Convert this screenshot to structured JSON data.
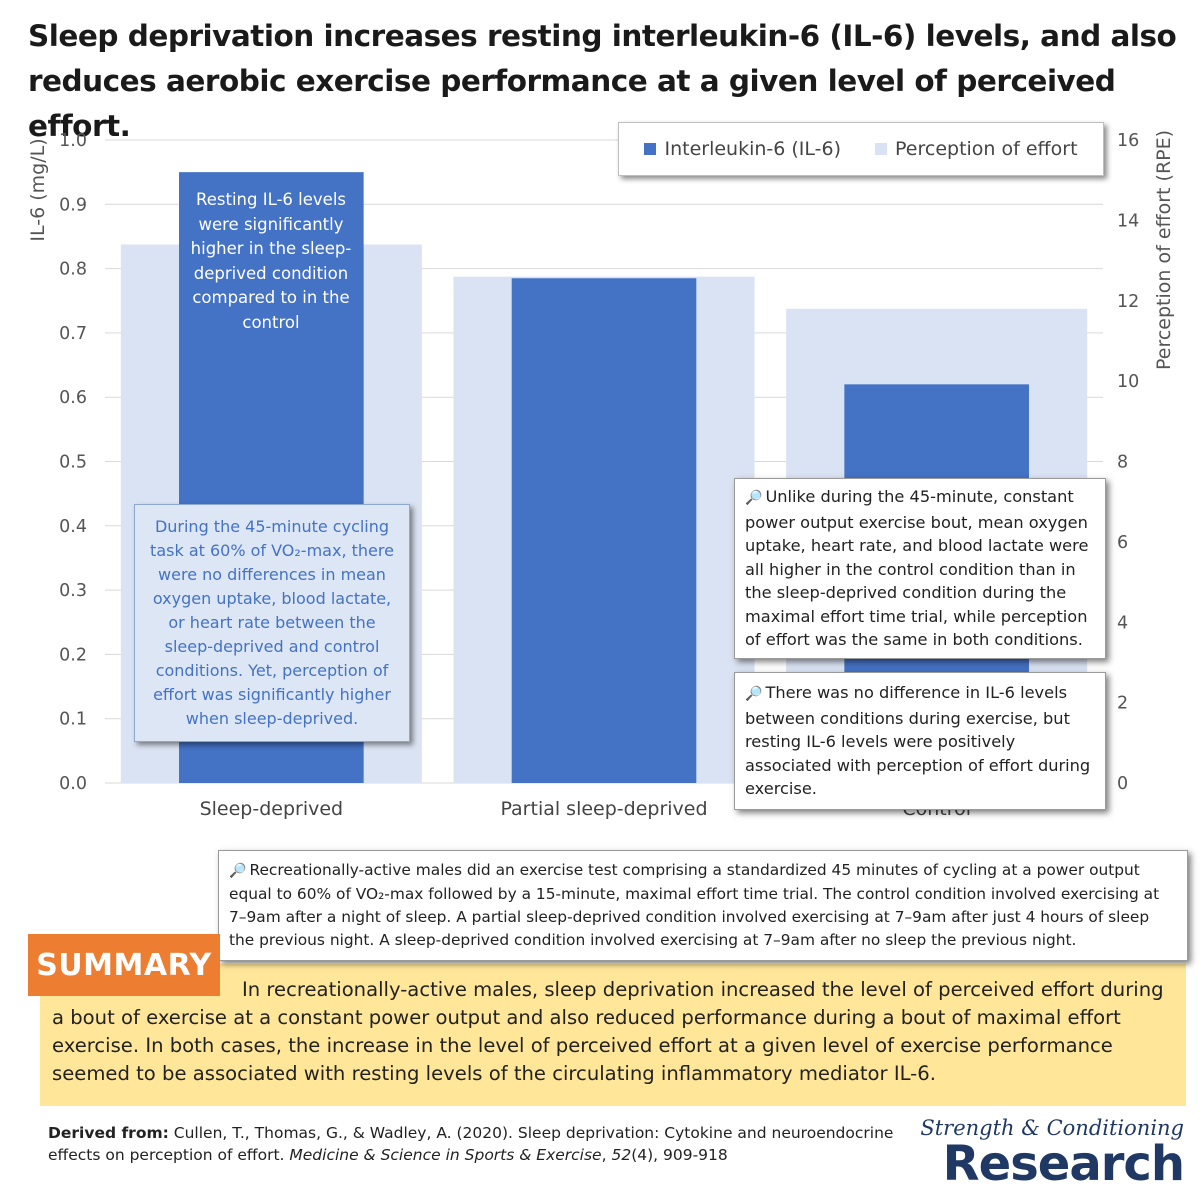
{
  "title": "Sleep deprivation increases resting interleukin-6 (IL-6) levels, and also reduces aerobic exercise performance at a given level of perceived effort.",
  "colors": {
    "il6": "#4472c4",
    "effort": "#dae3f3",
    "summary_bg": "#ffe699",
    "summary_tag": "#ed7d31",
    "logo": "#1f3864"
  },
  "chart_data": {
    "type": "bar",
    "categories": [
      "Sleep-deprived",
      "Partial sleep-deprived",
      "Control"
    ],
    "series": [
      {
        "name": "Interleukin-6 (IL-6)",
        "axis": "left",
        "values": [
          0.95,
          0.785,
          0.62
        ]
      },
      {
        "name": "Perception of effort",
        "axis": "right",
        "values": [
          13.4,
          12.6,
          11.8
        ]
      }
    ],
    "ylabel": "IL-6 (mg/L)",
    "ylim": [
      0,
      1.0
    ],
    "yticks": [
      "0.0",
      "0.1",
      "0.2",
      "0.3",
      "0.4",
      "0.5",
      "0.6",
      "0.7",
      "0.8",
      "0.9",
      "1.0"
    ],
    "y2label": "Perception of effort (RPE)",
    "y2lim": [
      0,
      16
    ],
    "y2ticks": [
      "0",
      "2",
      "4",
      "6",
      "8",
      "10",
      "12",
      "14",
      "16"
    ],
    "grid": true,
    "legend": "top-right"
  },
  "annotations": {
    "bar_note": "Resting IL-6 levels were significantly higher in the sleep-deprived condition compared to in the control",
    "callout_left": "During the 45-minute cycling task at 60% of VO₂-max, there were no differences in mean oxygen uptake, blood lactate, or heart rate between the sleep-deprived and control conditions. Yet, perception of effort was significantly higher when sleep-deprived.",
    "note_right_1": "Unlike during the 45-minute, constant power output exercise bout, mean oxygen uptake, heart rate, and blood lactate were all higher in the control condition than in the sleep-deprived condition during the maximal effort time trial, while perception of effort was the same in both conditions.",
    "note_right_2": "There was no difference in IL-6 levels between conditions during exercise, but resting IL-6 levels were positively associated with perception of effort during exercise.",
    "note_method": "Recreationally-active males did an exercise test comprising a standardized 45 minutes of cycling at a power output equal to 60% of VO₂-max followed by a 15-minute, maximal effort time trial. The control condition involved exercising at 7–9am after a night of sleep. A partial sleep-deprived condition involved exercising at 7–9am after just 4 hours of sleep the previous night. A sleep-deprived condition involved exercising at 7–9am after no sleep the previous night."
  },
  "summary": {
    "label": "SUMMARY",
    "text": "In recreationally-active males, sleep deprivation increased the level of perceived effort during a bout of exercise at a constant power output and also reduced performance during a bout of maximal effort exercise. In both cases, the increase in the level of perceived effort at a given level of exercise performance seemed to be associated with resting levels of the circulating inflammatory mediator IL-6."
  },
  "citation": {
    "label": "Derived from:",
    "authors": "Cullen, T., Thomas, G., & Wadley, A. (2020). Sleep deprivation: Cytokine and neuroendocrine effects on perception of effort.",
    "journal": "Medicine & Science in Sports & Exercise",
    "volume": "52",
    "issue_pages": "(4), 909-918"
  },
  "logo": {
    "script": "Strength & Conditioning",
    "main": "Research"
  },
  "icons": {
    "magnifier": "magnifier-icon"
  }
}
